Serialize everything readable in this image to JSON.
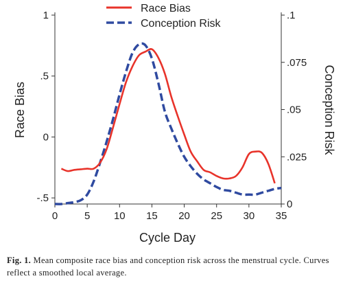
{
  "chart_data": {
    "type": "line",
    "xlabel": "Cycle Day",
    "ylabel_left": "Race Bias",
    "ylabel_right": "Conception Risk",
    "xlim": [
      0,
      35
    ],
    "ylim_left": [
      -0.55,
      1.0
    ],
    "ylim_right": [
      0,
      0.1
    ],
    "x_ticks": [
      0,
      5,
      10,
      15,
      20,
      25,
      30,
      35
    ],
    "x_tick_labels": [
      "0",
      "5",
      "10",
      "15",
      "20",
      "25",
      "30",
      "35"
    ],
    "y_left_ticks": [
      1,
      0.5,
      0,
      -0.5
    ],
    "y_left_tick_labels": [
      "1",
      ".5",
      "0",
      "-.5"
    ],
    "y_right_ticks": [
      0.1,
      0.075,
      0.05,
      0.025,
      0
    ],
    "y_right_tick_labels": [
      ".1",
      ".075",
      ".05",
      ".025",
      "0"
    ],
    "grid": false,
    "legend_position": "top-center",
    "series": [
      {
        "name": "Race Bias",
        "axis": "left",
        "color": "#e8332a",
        "style": "solid",
        "x": [
          1,
          2,
          3,
          4,
          5,
          6,
          7,
          8,
          9,
          10,
          11,
          12,
          13,
          14,
          15,
          16,
          17,
          18,
          19,
          20,
          21,
          22,
          23,
          24,
          25,
          26,
          27,
          28,
          29,
          30,
          31,
          32,
          33,
          34
        ],
        "y": [
          -0.26,
          -0.28,
          -0.27,
          -0.265,
          -0.26,
          -0.26,
          -0.21,
          -0.1,
          0.08,
          0.27,
          0.45,
          0.58,
          0.67,
          0.7,
          0.72,
          0.65,
          0.52,
          0.33,
          0.17,
          0.02,
          -0.12,
          -0.2,
          -0.27,
          -0.29,
          -0.32,
          -0.34,
          -0.34,
          -0.32,
          -0.25,
          -0.14,
          -0.12,
          -0.13,
          -0.22,
          -0.38
        ]
      },
      {
        "name": "Conception Risk",
        "axis": "right",
        "color": "#2f4aa0",
        "style": "dashed",
        "x": [
          0,
          1,
          2,
          3,
          4,
          5,
          6,
          7,
          8,
          9,
          10,
          11,
          12,
          13,
          14,
          15,
          16,
          17,
          18,
          19,
          20,
          21,
          22,
          23,
          24,
          25,
          26,
          27,
          28,
          29,
          30,
          31,
          32,
          33,
          34,
          35
        ],
        "y": [
          0.0,
          0.0,
          0.0005,
          0.001,
          0.002,
          0.005,
          0.012,
          0.022,
          0.033,
          0.045,
          0.058,
          0.07,
          0.08,
          0.0845,
          0.084,
          0.077,
          0.064,
          0.049,
          0.04,
          0.032,
          0.025,
          0.02,
          0.016,
          0.013,
          0.011,
          0.009,
          0.0075,
          0.007,
          0.006,
          0.005,
          0.005,
          0.005,
          0.006,
          0.007,
          0.008,
          0.0085
        ]
      }
    ]
  },
  "caption": {
    "label": "Fig. 1.",
    "text": "Mean composite race bias and conception risk across the menstrual cycle. Curves reflect a smoothed local average."
  }
}
